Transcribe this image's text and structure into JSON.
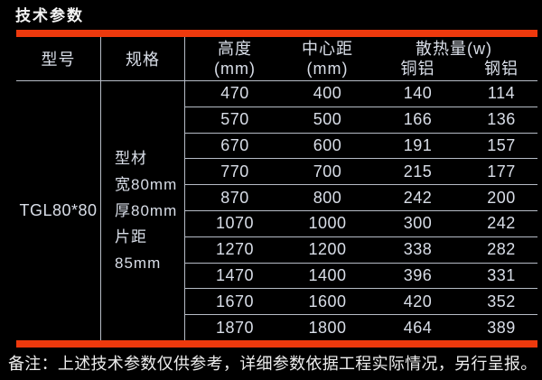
{
  "page": {
    "title": "技术参数",
    "note": "备注：上述技术参数仅供参考，详细参数依据工程实际情况，另行呈报。",
    "accent_color": "#ee390d",
    "background_color": "#000000",
    "grid_line_color": "#b6bcc6",
    "text_color": "#d9dee8"
  },
  "table": {
    "headers": {
      "model": "型号",
      "spec": "规格",
      "height_line1": "高度",
      "height_line2": "(mm)",
      "center_line1": "中心距",
      "center_line2": "(mm)",
      "heat": "散热量(w)",
      "copper": "铜铝",
      "steel": "钢铝"
    },
    "model_value": "TGL80*80",
    "spec_lines": [
      "型材",
      "宽80mm",
      "厚80mm",
      "片距",
      "85mm"
    ],
    "rows": [
      {
        "height": "470",
        "center": "400",
        "copper": "140",
        "steel": "114"
      },
      {
        "height": "570",
        "center": "500",
        "copper": "166",
        "steel": "136"
      },
      {
        "height": "670",
        "center": "600",
        "copper": "191",
        "steel": "157"
      },
      {
        "height": "770",
        "center": "700",
        "copper": "215",
        "steel": "177"
      },
      {
        "height": "870",
        "center": "800",
        "copper": "242",
        "steel": "200"
      },
      {
        "height": "1070",
        "center": "1000",
        "copper": "300",
        "steel": "242"
      },
      {
        "height": "1270",
        "center": "1200",
        "copper": "338",
        "steel": "282"
      },
      {
        "height": "1470",
        "center": "1400",
        "copper": "396",
        "steel": "331"
      },
      {
        "height": "1670",
        "center": "1600",
        "copper": "420",
        "steel": "352"
      },
      {
        "height": "1870",
        "center": "1800",
        "copper": "464",
        "steel": "389"
      }
    ]
  }
}
